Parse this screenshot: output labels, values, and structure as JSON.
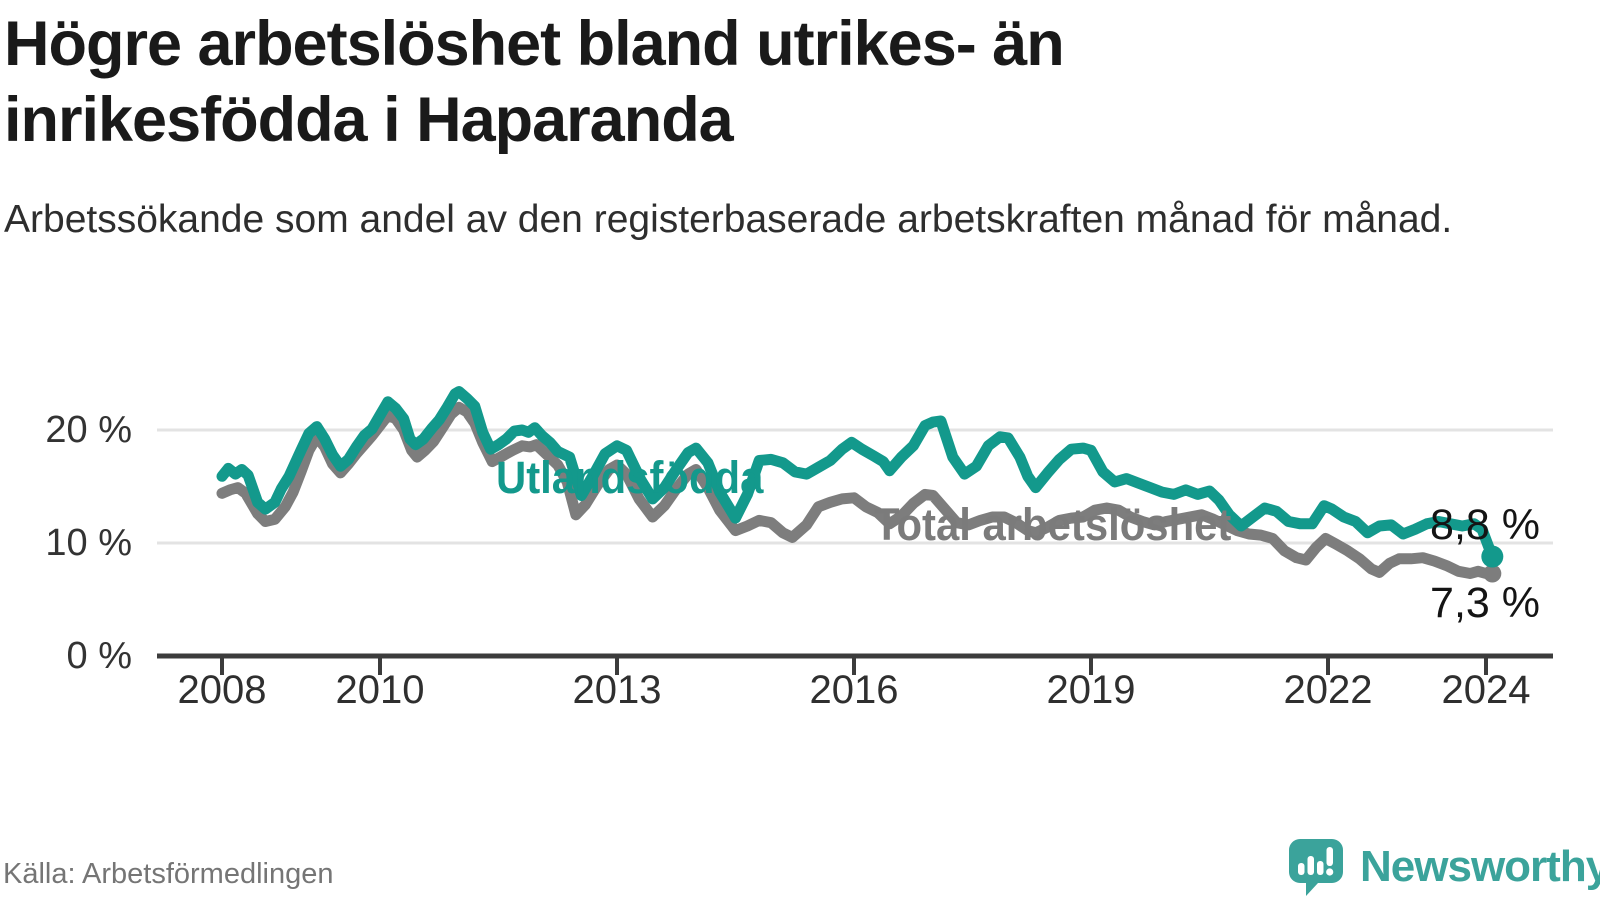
{
  "header": {
    "title": "Högre arbetslöshet bland utrikes- än inrikesfödda i Haparanda",
    "subtitle": "Arbetssökande som andel av den registerbaserade arbetskraften månad för månad."
  },
  "footer": {
    "source": "Källa: Arbetsförmedlingen",
    "brand_name": "Newsworthy",
    "brand_icon": "bar-chart-speech-bubble-icon"
  },
  "colors": {
    "teal": "#13998c",
    "gray": "#7d7d7d",
    "axis": "#3c3c3c",
    "grid": "#e3e3e3",
    "brand_teal": "#3ba39b"
  },
  "chart_data": {
    "type": "line",
    "unit": "%",
    "grid": "horizontal-only",
    "x_axis": {
      "ticks": [
        2008,
        2010,
        2013,
        2016,
        2019,
        2022,
        2024
      ],
      "range_years": [
        2007.2,
        2024.9
      ]
    },
    "y_axis": {
      "ticks": [
        {
          "value": 0,
          "label": "0 %"
        },
        {
          "value": 10,
          "label": "10 %"
        },
        {
          "value": 20,
          "label": "20 %"
        }
      ],
      "gridlines": [
        10,
        20
      ],
      "range": [
        0,
        24.5
      ]
    },
    "series": [
      {
        "name": "Utlandsfödda",
        "color_key": "teal",
        "end_label": "8,8 %",
        "end_value": 8.8,
        "end_dot_radius": 11,
        "points": [
          [
            2008.0,
            15.9
          ],
          [
            2008.08,
            16.6
          ],
          [
            2008.17,
            16.1
          ],
          [
            2008.25,
            16.5
          ],
          [
            2008.33,
            16.0
          ],
          [
            2008.45,
            13.6
          ],
          [
            2008.55,
            13.0
          ],
          [
            2008.67,
            13.6
          ],
          [
            2008.75,
            14.8
          ],
          [
            2008.85,
            15.9
          ],
          [
            2009.0,
            18.2
          ],
          [
            2009.1,
            19.7
          ],
          [
            2009.2,
            20.3
          ],
          [
            2009.3,
            19.2
          ],
          [
            2009.4,
            17.8
          ],
          [
            2009.5,
            16.8
          ],
          [
            2009.6,
            17.4
          ],
          [
            2009.7,
            18.5
          ],
          [
            2009.8,
            19.5
          ],
          [
            2009.9,
            20.1
          ],
          [
            2010.0,
            21.3
          ],
          [
            2010.1,
            22.5
          ],
          [
            2010.2,
            21.9
          ],
          [
            2010.3,
            21.0
          ],
          [
            2010.38,
            19.2
          ],
          [
            2010.45,
            18.7
          ],
          [
            2010.55,
            19.2
          ],
          [
            2010.65,
            20.1
          ],
          [
            2010.75,
            20.9
          ],
          [
            2010.85,
            22.0
          ],
          [
            2010.95,
            23.2
          ],
          [
            2011.0,
            23.4
          ],
          [
            2011.1,
            22.8
          ],
          [
            2011.2,
            22.1
          ],
          [
            2011.3,
            19.8
          ],
          [
            2011.4,
            18.3
          ],
          [
            2011.5,
            18.7
          ],
          [
            2011.6,
            19.2
          ],
          [
            2011.7,
            19.9
          ],
          [
            2011.8,
            20.0
          ],
          [
            2011.88,
            19.8
          ],
          [
            2011.96,
            20.2
          ],
          [
            2012.05,
            19.5
          ],
          [
            2012.15,
            18.9
          ],
          [
            2012.25,
            18.1
          ],
          [
            2012.4,
            17.6
          ],
          [
            2012.55,
            14.2
          ],
          [
            2012.7,
            16.0
          ],
          [
            2012.85,
            17.9
          ],
          [
            2013.0,
            18.6
          ],
          [
            2013.12,
            18.2
          ],
          [
            2013.3,
            15.6
          ],
          [
            2013.45,
            13.9
          ],
          [
            2013.6,
            14.9
          ],
          [
            2013.75,
            16.5
          ],
          [
            2013.9,
            18.0
          ],
          [
            2014.0,
            18.4
          ],
          [
            2014.15,
            17.1
          ],
          [
            2014.3,
            14.5
          ],
          [
            2014.5,
            12.2
          ],
          [
            2014.65,
            14.3
          ],
          [
            2014.8,
            17.3
          ],
          [
            2014.95,
            17.4
          ],
          [
            2015.1,
            17.1
          ],
          [
            2015.25,
            16.3
          ],
          [
            2015.4,
            16.1
          ],
          [
            2015.55,
            16.7
          ],
          [
            2015.7,
            17.3
          ],
          [
            2015.85,
            18.3
          ],
          [
            2015.97,
            18.9
          ],
          [
            2016.1,
            18.3
          ],
          [
            2016.25,
            17.7
          ],
          [
            2016.37,
            17.2
          ],
          [
            2016.45,
            16.4
          ],
          [
            2016.6,
            17.6
          ],
          [
            2016.75,
            18.6
          ],
          [
            2016.9,
            20.4
          ],
          [
            2017.0,
            20.7
          ],
          [
            2017.1,
            20.8
          ],
          [
            2017.25,
            17.6
          ],
          [
            2017.4,
            16.1
          ],
          [
            2017.55,
            16.8
          ],
          [
            2017.7,
            18.6
          ],
          [
            2017.85,
            19.4
          ],
          [
            2017.95,
            19.3
          ],
          [
            2018.1,
            17.6
          ],
          [
            2018.2,
            15.9
          ],
          [
            2018.3,
            14.9
          ],
          [
            2018.45,
            16.2
          ],
          [
            2018.6,
            17.4
          ],
          [
            2018.75,
            18.3
          ],
          [
            2018.9,
            18.4
          ],
          [
            2019.0,
            18.2
          ],
          [
            2019.15,
            16.3
          ],
          [
            2019.3,
            15.4
          ],
          [
            2019.45,
            15.7
          ],
          [
            2019.6,
            15.3
          ],
          [
            2019.75,
            14.9
          ],
          [
            2019.9,
            14.5
          ],
          [
            2020.05,
            14.3
          ],
          [
            2020.2,
            14.7
          ],
          [
            2020.35,
            14.3
          ],
          [
            2020.5,
            14.6
          ],
          [
            2020.62,
            13.8
          ],
          [
            2020.75,
            12.5
          ],
          [
            2020.9,
            11.5
          ],
          [
            2021.05,
            12.3
          ],
          [
            2021.2,
            13.1
          ],
          [
            2021.35,
            12.8
          ],
          [
            2021.5,
            11.9
          ],
          [
            2021.65,
            11.7
          ],
          [
            2021.8,
            11.7
          ],
          [
            2021.95,
            13.3
          ],
          [
            2022.05,
            13.0
          ],
          [
            2022.2,
            12.3
          ],
          [
            2022.35,
            11.9
          ],
          [
            2022.5,
            10.9
          ],
          [
            2022.65,
            11.5
          ],
          [
            2022.8,
            11.6
          ],
          [
            2022.95,
            10.8
          ],
          [
            2023.1,
            11.2
          ],
          [
            2023.25,
            11.7
          ],
          [
            2023.4,
            11.9
          ],
          [
            2023.55,
            11.7
          ],
          [
            2023.7,
            11.5
          ],
          [
            2023.85,
            11.7
          ],
          [
            2023.95,
            11.2
          ],
          [
            2024.08,
            8.8
          ]
        ]
      },
      {
        "name": "Total arbetslöshet",
        "color_key": "gray",
        "end_label": "7,3 %",
        "end_value": 7.3,
        "end_dot_radius": 9,
        "points": [
          [
            2008.0,
            14.4
          ],
          [
            2008.1,
            14.7
          ],
          [
            2008.2,
            14.9
          ],
          [
            2008.3,
            14.4
          ],
          [
            2008.45,
            12.6
          ],
          [
            2008.55,
            11.9
          ],
          [
            2008.67,
            12.1
          ],
          [
            2008.8,
            13.2
          ],
          [
            2008.9,
            14.5
          ],
          [
            2009.0,
            16.3
          ],
          [
            2009.1,
            18.2
          ],
          [
            2009.2,
            19.4
          ],
          [
            2009.3,
            18.5
          ],
          [
            2009.4,
            17.0
          ],
          [
            2009.5,
            16.2
          ],
          [
            2009.6,
            17.0
          ],
          [
            2009.7,
            17.9
          ],
          [
            2009.8,
            18.7
          ],
          [
            2009.9,
            19.5
          ],
          [
            2010.0,
            20.4
          ],
          [
            2010.1,
            21.3
          ],
          [
            2010.2,
            21.0
          ],
          [
            2010.3,
            20.0
          ],
          [
            2010.4,
            18.2
          ],
          [
            2010.47,
            17.6
          ],
          [
            2010.57,
            18.2
          ],
          [
            2010.68,
            19.0
          ],
          [
            2010.8,
            20.3
          ],
          [
            2010.9,
            21.4
          ],
          [
            2011.0,
            22.0
          ],
          [
            2011.1,
            21.6
          ],
          [
            2011.2,
            20.6
          ],
          [
            2011.3,
            18.9
          ],
          [
            2011.42,
            17.2
          ],
          [
            2011.55,
            17.7
          ],
          [
            2011.68,
            18.2
          ],
          [
            2011.8,
            18.6
          ],
          [
            2011.9,
            18.5
          ],
          [
            2011.98,
            18.7
          ],
          [
            2012.1,
            17.9
          ],
          [
            2012.25,
            16.9
          ],
          [
            2012.37,
            15.4
          ],
          [
            2012.48,
            12.5
          ],
          [
            2012.6,
            13.4
          ],
          [
            2012.75,
            15.1
          ],
          [
            2012.9,
            16.5
          ],
          [
            2013.0,
            16.9
          ],
          [
            2013.12,
            16.1
          ],
          [
            2013.28,
            13.9
          ],
          [
            2013.45,
            12.3
          ],
          [
            2013.6,
            13.3
          ],
          [
            2013.75,
            14.8
          ],
          [
            2013.9,
            16.1
          ],
          [
            2014.0,
            16.5
          ],
          [
            2014.15,
            14.9
          ],
          [
            2014.3,
            12.9
          ],
          [
            2014.5,
            11.1
          ],
          [
            2014.65,
            11.5
          ],
          [
            2014.8,
            12.0
          ],
          [
            2014.95,
            11.8
          ],
          [
            2015.1,
            10.9
          ],
          [
            2015.22,
            10.5
          ],
          [
            2015.4,
            11.6
          ],
          [
            2015.55,
            13.2
          ],
          [
            2015.7,
            13.6
          ],
          [
            2015.85,
            13.9
          ],
          [
            2016.0,
            14.0
          ],
          [
            2016.15,
            13.2
          ],
          [
            2016.3,
            12.7
          ],
          [
            2016.45,
            11.7
          ],
          [
            2016.6,
            12.4
          ],
          [
            2016.75,
            13.5
          ],
          [
            2016.9,
            14.3
          ],
          [
            2017.0,
            14.2
          ],
          [
            2017.15,
            13.0
          ],
          [
            2017.3,
            11.8
          ],
          [
            2017.45,
            11.6
          ],
          [
            2017.6,
            12.0
          ],
          [
            2017.75,
            12.3
          ],
          [
            2017.9,
            12.3
          ],
          [
            2018.05,
            11.8
          ],
          [
            2018.2,
            11.1
          ],
          [
            2018.3,
            10.9
          ],
          [
            2018.45,
            11.4
          ],
          [
            2018.6,
            12.0
          ],
          [
            2018.75,
            12.2
          ],
          [
            2018.9,
            12.3
          ],
          [
            2019.05,
            12.9
          ],
          [
            2019.2,
            13.1
          ],
          [
            2019.35,
            12.9
          ],
          [
            2019.5,
            12.3
          ],
          [
            2019.65,
            11.9
          ],
          [
            2019.8,
            11.6
          ],
          [
            2019.95,
            11.9
          ],
          [
            2020.1,
            12.1
          ],
          [
            2020.25,
            12.3
          ],
          [
            2020.4,
            12.5
          ],
          [
            2020.55,
            12.1
          ],
          [
            2020.7,
            11.6
          ],
          [
            2020.85,
            11.1
          ],
          [
            2021.0,
            10.8
          ],
          [
            2021.15,
            10.7
          ],
          [
            2021.3,
            10.4
          ],
          [
            2021.45,
            9.3
          ],
          [
            2021.6,
            8.7
          ],
          [
            2021.72,
            8.5
          ],
          [
            2021.85,
            9.6
          ],
          [
            2021.97,
            10.4
          ],
          [
            2022.1,
            9.9
          ],
          [
            2022.25,
            9.3
          ],
          [
            2022.4,
            8.6
          ],
          [
            2022.55,
            7.7
          ],
          [
            2022.65,
            7.4
          ],
          [
            2022.78,
            8.2
          ],
          [
            2022.9,
            8.6
          ],
          [
            2023.05,
            8.6
          ],
          [
            2023.2,
            8.7
          ],
          [
            2023.35,
            8.4
          ],
          [
            2023.5,
            8.0
          ],
          [
            2023.65,
            7.5
          ],
          [
            2023.8,
            7.3
          ],
          [
            2023.9,
            7.5
          ],
          [
            2024.0,
            7.3
          ],
          [
            2024.08,
            7.3
          ]
        ]
      }
    ]
  }
}
